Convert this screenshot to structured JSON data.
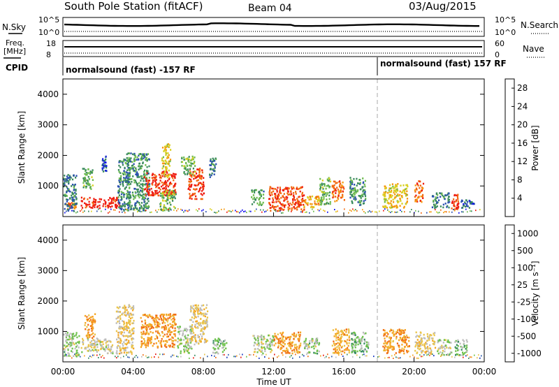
{
  "header": {
    "station": "South Pole Station (fitACF)",
    "beam": "Beam 04",
    "date": "03/Aug/2015"
  },
  "noise_panel": {
    "left_label": "N.Sky",
    "right_label": "N.Search",
    "left_ticks": [
      "10^5",
      "10^0"
    ],
    "right_ticks": [
      "10^5",
      "10^0"
    ]
  },
  "freq_panel": {
    "left_label_1": "Freq.",
    "left_label_2": "[MHz]",
    "left_ticks": [
      "18",
      "8"
    ],
    "right_ticks": [
      "60",
      "0"
    ],
    "right_label": "Nave"
  },
  "cpid_panel": {
    "label": "CPID",
    "segments": [
      {
        "text": "normalsound (fast) -157 RF",
        "start_hour": 0
      },
      {
        "text": "normalsound (fast) 157 RF",
        "start_hour": 18.0
      }
    ]
  },
  "colors": {
    "power": [
      "#1010ee",
      "#2a4fb0",
      "#3a8a5c",
      "#6dbb4c",
      "#d9d020",
      "#f59a10",
      "#f26a10",
      "#ee1c10"
    ],
    "velocity": [
      "#1838c0",
      "#2f5fb0",
      "#3a8c62",
      "#6dc14a",
      "#bdbdbd",
      "#e9c44a",
      "#f5a623",
      "#f06e16",
      "#e81b12"
    ]
  },
  "chart_data": [
    {
      "type": "heatmap",
      "name": "power",
      "ylabel": "Slant Range [km]",
      "yticks": [
        "1000",
        "2000",
        "3000",
        "4000"
      ],
      "ylim": [
        0,
        4500
      ],
      "colorbar_label": "Power [dB]",
      "colorbar_ticks": [
        "4",
        "8",
        "12",
        "16",
        "20",
        "24",
        "28"
      ],
      "clim": [
        0,
        30
      ],
      "regions": [
        {
          "t": 0.15,
          "r": 250,
          "w": 0.55,
          "h": 250,
          "v": 24
        },
        {
          "t": 0.0,
          "r": 200,
          "w": 0.75,
          "h": 1200,
          "v": 8
        },
        {
          "t": 1.0,
          "r": 300,
          "w": 2.2,
          "h": 350,
          "v": 28
        },
        {
          "t": 1.1,
          "r": 900,
          "w": 0.6,
          "h": 700,
          "v": 12
        },
        {
          "t": 2.2,
          "r": 1500,
          "w": 0.25,
          "h": 500,
          "v": 6
        },
        {
          "t": 3.1,
          "r": 200,
          "w": 0.7,
          "h": 1700,
          "v": 9
        },
        {
          "t": 3.6,
          "r": 200,
          "w": 1.3,
          "h": 1900,
          "v": 10
        },
        {
          "t": 4.6,
          "r": 700,
          "w": 1.8,
          "h": 800,
          "v": 28
        },
        {
          "t": 5.6,
          "r": 1300,
          "w": 0.5,
          "h": 1100,
          "v": 18
        },
        {
          "t": 5.5,
          "r": 200,
          "w": 0.9,
          "h": 700,
          "v": 13
        },
        {
          "t": 7.1,
          "r": 600,
          "w": 0.9,
          "h": 1000,
          "v": 26
        },
        {
          "t": 6.7,
          "r": 1400,
          "w": 0.8,
          "h": 600,
          "v": 12
        },
        {
          "t": 8.3,
          "r": 1300,
          "w": 0.4,
          "h": 700,
          "v": 9
        },
        {
          "t": 10.7,
          "r": 400,
          "w": 0.7,
          "h": 500,
          "v": 11
        },
        {
          "t": 11.7,
          "r": 200,
          "w": 2.0,
          "h": 800,
          "v": 26
        },
        {
          "t": 13.7,
          "r": 300,
          "w": 0.9,
          "h": 400,
          "v": 20
        },
        {
          "t": 14.6,
          "r": 400,
          "w": 0.6,
          "h": 900,
          "v": 12
        },
        {
          "t": 15.3,
          "r": 500,
          "w": 0.7,
          "h": 700,
          "v": 24
        },
        {
          "t": 16.3,
          "r": 400,
          "w": 0.9,
          "h": 900,
          "v": 10
        },
        {
          "t": 18.2,
          "r": 300,
          "w": 1.4,
          "h": 800,
          "v": 18
        },
        {
          "t": 20.0,
          "r": 500,
          "w": 0.5,
          "h": 700,
          "v": 24
        },
        {
          "t": 21.0,
          "r": 300,
          "w": 1.0,
          "h": 500,
          "v": 9
        },
        {
          "t": 22.1,
          "r": 250,
          "w": 0.4,
          "h": 500,
          "v": 28
        },
        {
          "t": 22.6,
          "r": 300,
          "w": 0.8,
          "h": 300,
          "v": 7
        }
      ]
    },
    {
      "type": "heatmap",
      "name": "velocity",
      "ylabel": "Slant Range [km]",
      "yticks": [
        "1000",
        "2000",
        "3000",
        "4000"
      ],
      "ylim": [
        0,
        4500
      ],
      "colorbar_label": "Velocity [m s⁻¹]",
      "colorbar_ticks": [
        "1000",
        "500",
        "100",
        "25",
        "-25",
        "-100",
        "-500",
        "-1000"
      ],
      "clim": [
        -1000,
        1000
      ],
      "xlabel": "Time UT",
      "xticks": [
        "00:00",
        "04:00",
        "08:00",
        "12:00",
        "16:00",
        "20:00",
        "00:00"
      ],
      "xlim": [
        0,
        24
      ],
      "regions": [
        {
          "t": 0.0,
          "r": 200,
          "w": 0.9,
          "h": 800,
          "v": 100
        },
        {
          "t": 1.0,
          "r": 300,
          "w": 1.8,
          "h": 500,
          "v": -100
        },
        {
          "t": 1.2,
          "r": 800,
          "w": 0.6,
          "h": 800,
          "v": -500
        },
        {
          "t": 3.0,
          "r": 300,
          "w": 1.0,
          "h": 1600,
          "v": -200
        },
        {
          "t": 4.4,
          "r": 500,
          "w": 2.0,
          "h": 1100,
          "v": -500
        },
        {
          "t": 6.5,
          "r": 300,
          "w": 0.8,
          "h": 900,
          "v": 80
        },
        {
          "t": 7.2,
          "r": 600,
          "w": 1.0,
          "h": 1300,
          "v": -200
        },
        {
          "t": 8.5,
          "r": 300,
          "w": 0.8,
          "h": 500,
          "v": 150
        },
        {
          "t": 10.8,
          "r": 300,
          "w": 1.2,
          "h": 600,
          "v": 60
        },
        {
          "t": 12.0,
          "r": 300,
          "w": 1.5,
          "h": 700,
          "v": -500
        },
        {
          "t": 13.7,
          "r": 300,
          "w": 0.9,
          "h": 500,
          "v": 120
        },
        {
          "t": 15.3,
          "r": 300,
          "w": 1.0,
          "h": 800,
          "v": -400
        },
        {
          "t": 16.4,
          "r": 300,
          "w": 1.0,
          "h": 700,
          "v": 200
        },
        {
          "t": 18.2,
          "r": 300,
          "w": 1.5,
          "h": 800,
          "v": -500
        },
        {
          "t": 20.0,
          "r": 300,
          "w": 1.2,
          "h": 700,
          "v": -200
        },
        {
          "t": 21.3,
          "r": 250,
          "w": 0.8,
          "h": 500,
          "v": 80
        },
        {
          "t": 22.3,
          "r": 250,
          "w": 0.7,
          "h": 500,
          "v": 150
        }
      ]
    }
  ]
}
